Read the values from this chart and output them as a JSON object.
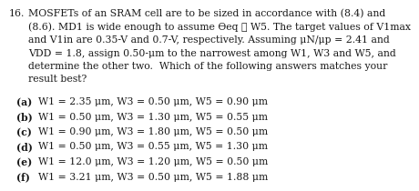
{
  "q_num": "16.",
  "q_lines": [
    "MOSFETs of an SRAM cell are to be sized in accordance with (8.4) and",
    "(8.6). MD1 is wide enough to assume ϴeq ≅ W5. The target values of V1max",
    "and V1in are 0.35-V and 0.7-V, respectively. Assuming μN/μp = 2.41 and",
    "VDD = 1.8, assign 0.50-μm to the narrowest among W1, W3 and W5, and",
    "determine the other two.  Which of the following answers matches your",
    "result best?"
  ],
  "answers_label": [
    "(a)",
    "(b)",
    "(c)",
    "(d)",
    "(e)",
    "(f)"
  ],
  "answers_text": [
    "W1 = 2.35 μm, W3 = 0.50 μm, W5 = 0.90 μm",
    "W1 = 0.50 μm, W3 = 1.30 μm, W5 = 0.55 μm",
    "W1 = 0.90 μm, W3 = 1.80 μm, W5 = 0.50 μm",
    "W1 = 0.50 μm, W3 = 0.55 μm, W5 = 1.30 μm",
    "W1 = 12.0 μm, W3 = 1.20 μm, W5 = 0.50 μm",
    "W1 = 3.21 μm, W3 = 0.50 μm, W5 = 1.88 μm"
  ],
  "bg_color": "#ffffff",
  "text_color": "#1a1a1a",
  "font_size": 7.8
}
